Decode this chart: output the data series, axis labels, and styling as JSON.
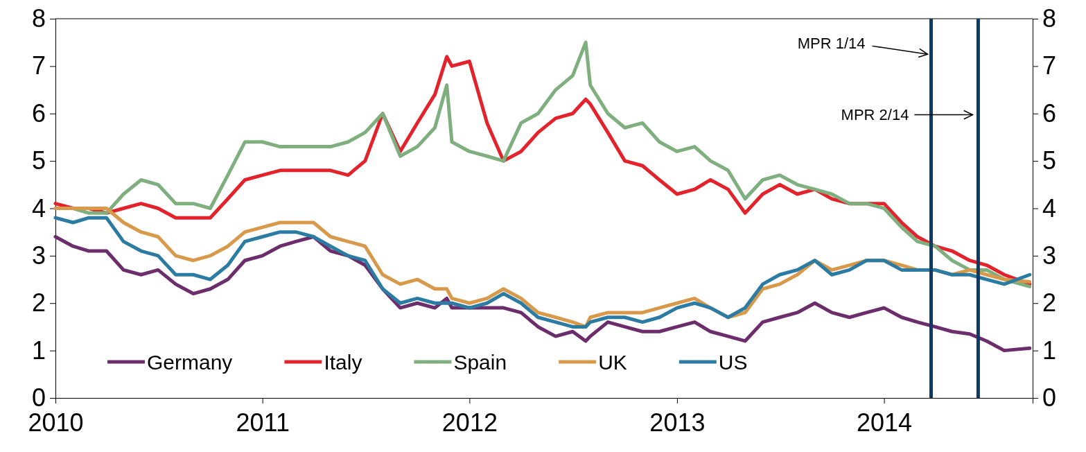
{
  "chart_data": {
    "type": "line",
    "x": [
      "2010-01",
      "2010-02",
      "2010-03",
      "2010-04",
      "2010-05",
      "2010-06",
      "2010-07",
      "2010-08",
      "2010-09",
      "2010-10",
      "2010-11",
      "2010-12",
      "2011-01",
      "2011-02",
      "2011-03",
      "2011-04",
      "2011-05",
      "2011-06",
      "2011-07",
      "2011-08",
      "2011-09",
      "2011-10",
      "2011-11",
      "2011-11-22",
      "2011-12",
      "2012-01",
      "2012-02",
      "2012-03",
      "2012-04",
      "2012-05",
      "2012-06",
      "2012-07",
      "2012-07-24",
      "2012-08",
      "2012-09",
      "2012-10",
      "2012-11",
      "2012-12",
      "2013-01",
      "2013-02",
      "2013-03",
      "2013-04",
      "2013-05",
      "2013-06",
      "2013-07",
      "2013-08",
      "2013-09",
      "2013-10",
      "2013-11",
      "2013-12",
      "2014-01",
      "2014-02",
      "2014-03",
      "2014-04",
      "2014-05",
      "2014-06",
      "2014-07",
      "2014-08",
      "2014-09-15"
    ],
    "series": [
      {
        "name": "Germany",
        "color": "#6b2d6b",
        "values": [
          3.4,
          3.2,
          3.1,
          3.1,
          2.7,
          2.6,
          2.7,
          2.4,
          2.2,
          2.3,
          2.5,
          2.9,
          3.0,
          3.2,
          3.3,
          3.4,
          3.1,
          3.0,
          2.8,
          2.3,
          1.9,
          2.0,
          1.9,
          2.1,
          1.9,
          1.9,
          1.9,
          1.9,
          1.8,
          1.5,
          1.3,
          1.4,
          1.2,
          1.3,
          1.6,
          1.5,
          1.4,
          1.4,
          1.5,
          1.6,
          1.4,
          1.3,
          1.2,
          1.6,
          1.7,
          1.8,
          2.0,
          1.8,
          1.7,
          1.8,
          1.9,
          1.7,
          1.6,
          1.5,
          1.4,
          1.35,
          1.2,
          1.0,
          1.05
        ]
      },
      {
        "name": "Italy",
        "color": "#e3232c",
        "values": [
          4.1,
          4.0,
          4.0,
          3.9,
          4.0,
          4.1,
          4.0,
          3.8,
          3.8,
          3.8,
          4.2,
          4.6,
          4.7,
          4.8,
          4.8,
          4.8,
          4.8,
          4.7,
          5.0,
          6.0,
          5.2,
          5.8,
          6.4,
          7.2,
          7.0,
          7.1,
          5.8,
          5.0,
          5.2,
          5.6,
          5.9,
          6.0,
          6.3,
          6.2,
          5.6,
          5.0,
          4.9,
          4.6,
          4.3,
          4.4,
          4.6,
          4.4,
          3.9,
          4.3,
          4.5,
          4.3,
          4.4,
          4.2,
          4.1,
          4.1,
          4.1,
          3.7,
          3.4,
          3.2,
          3.1,
          2.9,
          2.8,
          2.6,
          2.4
        ]
      },
      {
        "name": "Spain",
        "color": "#7fae7f",
        "values": [
          4.0,
          4.0,
          3.9,
          3.9,
          4.3,
          4.6,
          4.5,
          4.1,
          4.1,
          4.0,
          4.7,
          5.4,
          5.4,
          5.3,
          5.3,
          5.3,
          5.3,
          5.4,
          5.6,
          6.0,
          5.1,
          5.3,
          5.7,
          6.6,
          5.4,
          5.2,
          5.1,
          5.0,
          5.8,
          6.0,
          6.5,
          6.8,
          7.5,
          6.6,
          6.0,
          5.7,
          5.8,
          5.4,
          5.2,
          5.3,
          5.0,
          4.8,
          4.2,
          4.6,
          4.7,
          4.5,
          4.4,
          4.3,
          4.1,
          4.1,
          4.0,
          3.6,
          3.3,
          3.2,
          2.9,
          2.7,
          2.7,
          2.5,
          2.35
        ]
      },
      {
        "name": "UK",
        "color": "#d8994a",
        "values": [
          4.0,
          4.0,
          4.0,
          4.0,
          3.7,
          3.5,
          3.4,
          3.0,
          2.9,
          3.0,
          3.2,
          3.5,
          3.6,
          3.7,
          3.7,
          3.7,
          3.4,
          3.3,
          3.2,
          2.6,
          2.4,
          2.5,
          2.3,
          2.3,
          2.1,
          2.0,
          2.1,
          2.3,
          2.1,
          1.8,
          1.7,
          1.6,
          1.5,
          1.7,
          1.8,
          1.8,
          1.8,
          1.9,
          2.0,
          2.1,
          1.9,
          1.7,
          1.8,
          2.3,
          2.4,
          2.6,
          2.9,
          2.7,
          2.8,
          2.9,
          2.9,
          2.8,
          2.7,
          2.7,
          2.6,
          2.7,
          2.6,
          2.5,
          2.45
        ]
      },
      {
        "name": "US",
        "color": "#2b7ba3",
        "values": [
          3.8,
          3.7,
          3.8,
          3.8,
          3.3,
          3.1,
          3.0,
          2.6,
          2.6,
          2.5,
          2.8,
          3.3,
          3.4,
          3.5,
          3.5,
          3.4,
          3.2,
          3.0,
          2.9,
          2.3,
          2.0,
          2.1,
          2.0,
          2.0,
          2.0,
          1.9,
          2.0,
          2.2,
          2.0,
          1.7,
          1.6,
          1.5,
          1.5,
          1.6,
          1.7,
          1.7,
          1.6,
          1.7,
          1.9,
          2.0,
          1.9,
          1.7,
          1.9,
          2.4,
          2.6,
          2.7,
          2.9,
          2.6,
          2.7,
          2.9,
          2.9,
          2.7,
          2.7,
          2.7,
          2.6,
          2.6,
          2.5,
          2.4,
          2.6
        ]
      }
    ],
    "xlim": [
      "2010-01-01",
      "2014-09-20"
    ],
    "xticks": [
      "2010",
      "2011",
      "2012",
      "2013",
      "2014"
    ],
    "ylim": [
      0,
      8
    ],
    "yticks": [
      0,
      1,
      2,
      3,
      4,
      5,
      6,
      7,
      8
    ],
    "y2lim": [
      0,
      8
    ],
    "y2ticks": [
      0,
      1,
      2,
      3,
      4,
      5,
      6,
      7,
      8
    ],
    "ref_lines": [
      {
        "axis": "x",
        "value": "2014-03-25",
        "label": "MPR 1/14",
        "color": "#0d3b66"
      },
      {
        "axis": "x",
        "value": "2014-06-16",
        "label": "MPR 2/14",
        "color": "#0d3b66"
      }
    ],
    "legend": "bottom left",
    "grid": false,
    "line_style": "solid",
    "marker": "none"
  }
}
